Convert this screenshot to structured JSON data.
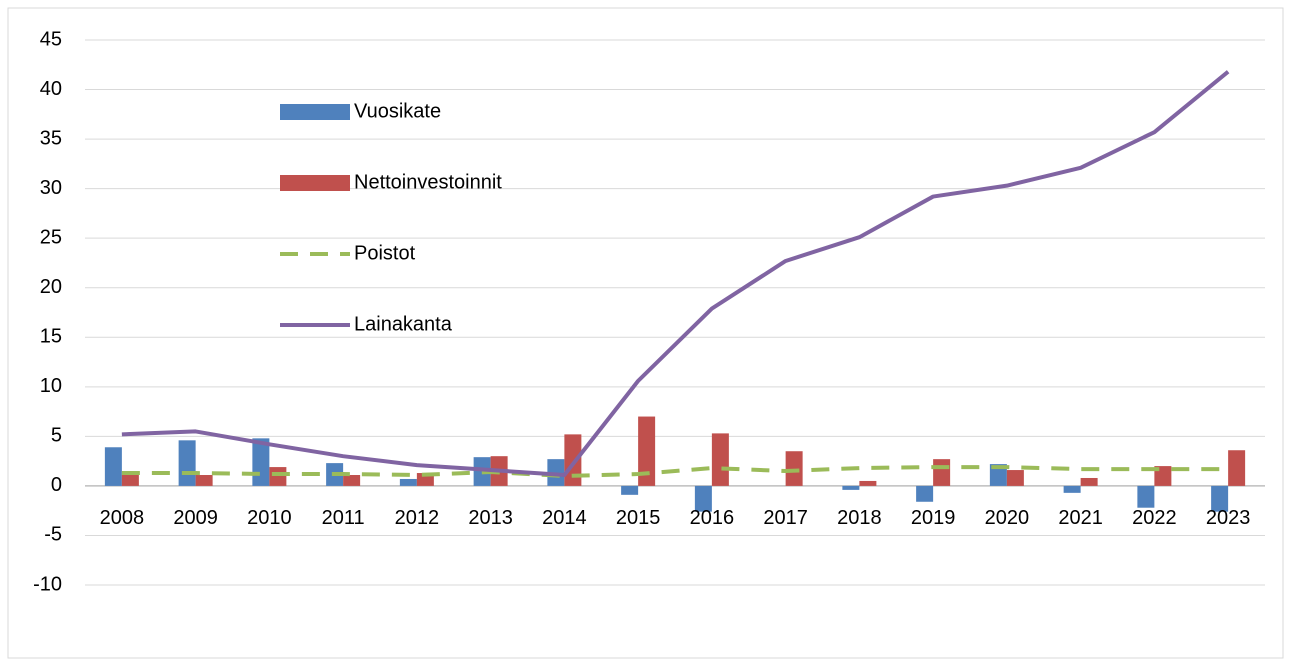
{
  "chart_data": {
    "type": "bar",
    "categories": [
      "2008",
      "2009",
      "2010",
      "2011",
      "2012",
      "2013",
      "2014",
      "2015",
      "2016",
      "2017",
      "2018",
      "2019",
      "2020",
      "2021",
      "2022",
      "2023"
    ],
    "series": [
      {
        "name": "Vuosikate",
        "type": "bar",
        "color": "#4f81bd",
        "values": [
          3.9,
          4.6,
          4.8,
          2.3,
          0.7,
          2.9,
          2.7,
          -0.9,
          -2.6,
          0,
          -0.4,
          -1.6,
          2.2,
          -0.7,
          -2.2,
          -2.6
        ]
      },
      {
        "name": "Nettoinvestoinnit",
        "type": "bar",
        "color": "#c0504d",
        "values": [
          1.1,
          1.1,
          1.9,
          1.1,
          1.3,
          3.0,
          5.2,
          7.0,
          5.3,
          3.5,
          0.5,
          2.7,
          1.6,
          0.8,
          2.0,
          3.6
        ]
      },
      {
        "name": "Poistot",
        "type": "line",
        "dashed": true,
        "color": "#9bbb59",
        "values": [
          1.3,
          1.3,
          1.2,
          1.2,
          1.1,
          1.4,
          1.0,
          1.2,
          1.8,
          1.5,
          1.8,
          1.9,
          1.9,
          1.7,
          1.7,
          1.7
        ]
      },
      {
        "name": "Lainakanta",
        "type": "line",
        "color": "#8064a2",
        "values": [
          5.2,
          5.5,
          4.2,
          3.0,
          2.1,
          1.6,
          1.1,
          10.6,
          17.9,
          22.7,
          25.1,
          29.2,
          30.3,
          32.1,
          35.7,
          41.8
        ]
      }
    ],
    "ylim": [
      -10,
      45
    ],
    "yticks": [
      -10,
      -5,
      0,
      5,
      10,
      15,
      20,
      25,
      30,
      35,
      40,
      45
    ],
    "grid": true
  }
}
